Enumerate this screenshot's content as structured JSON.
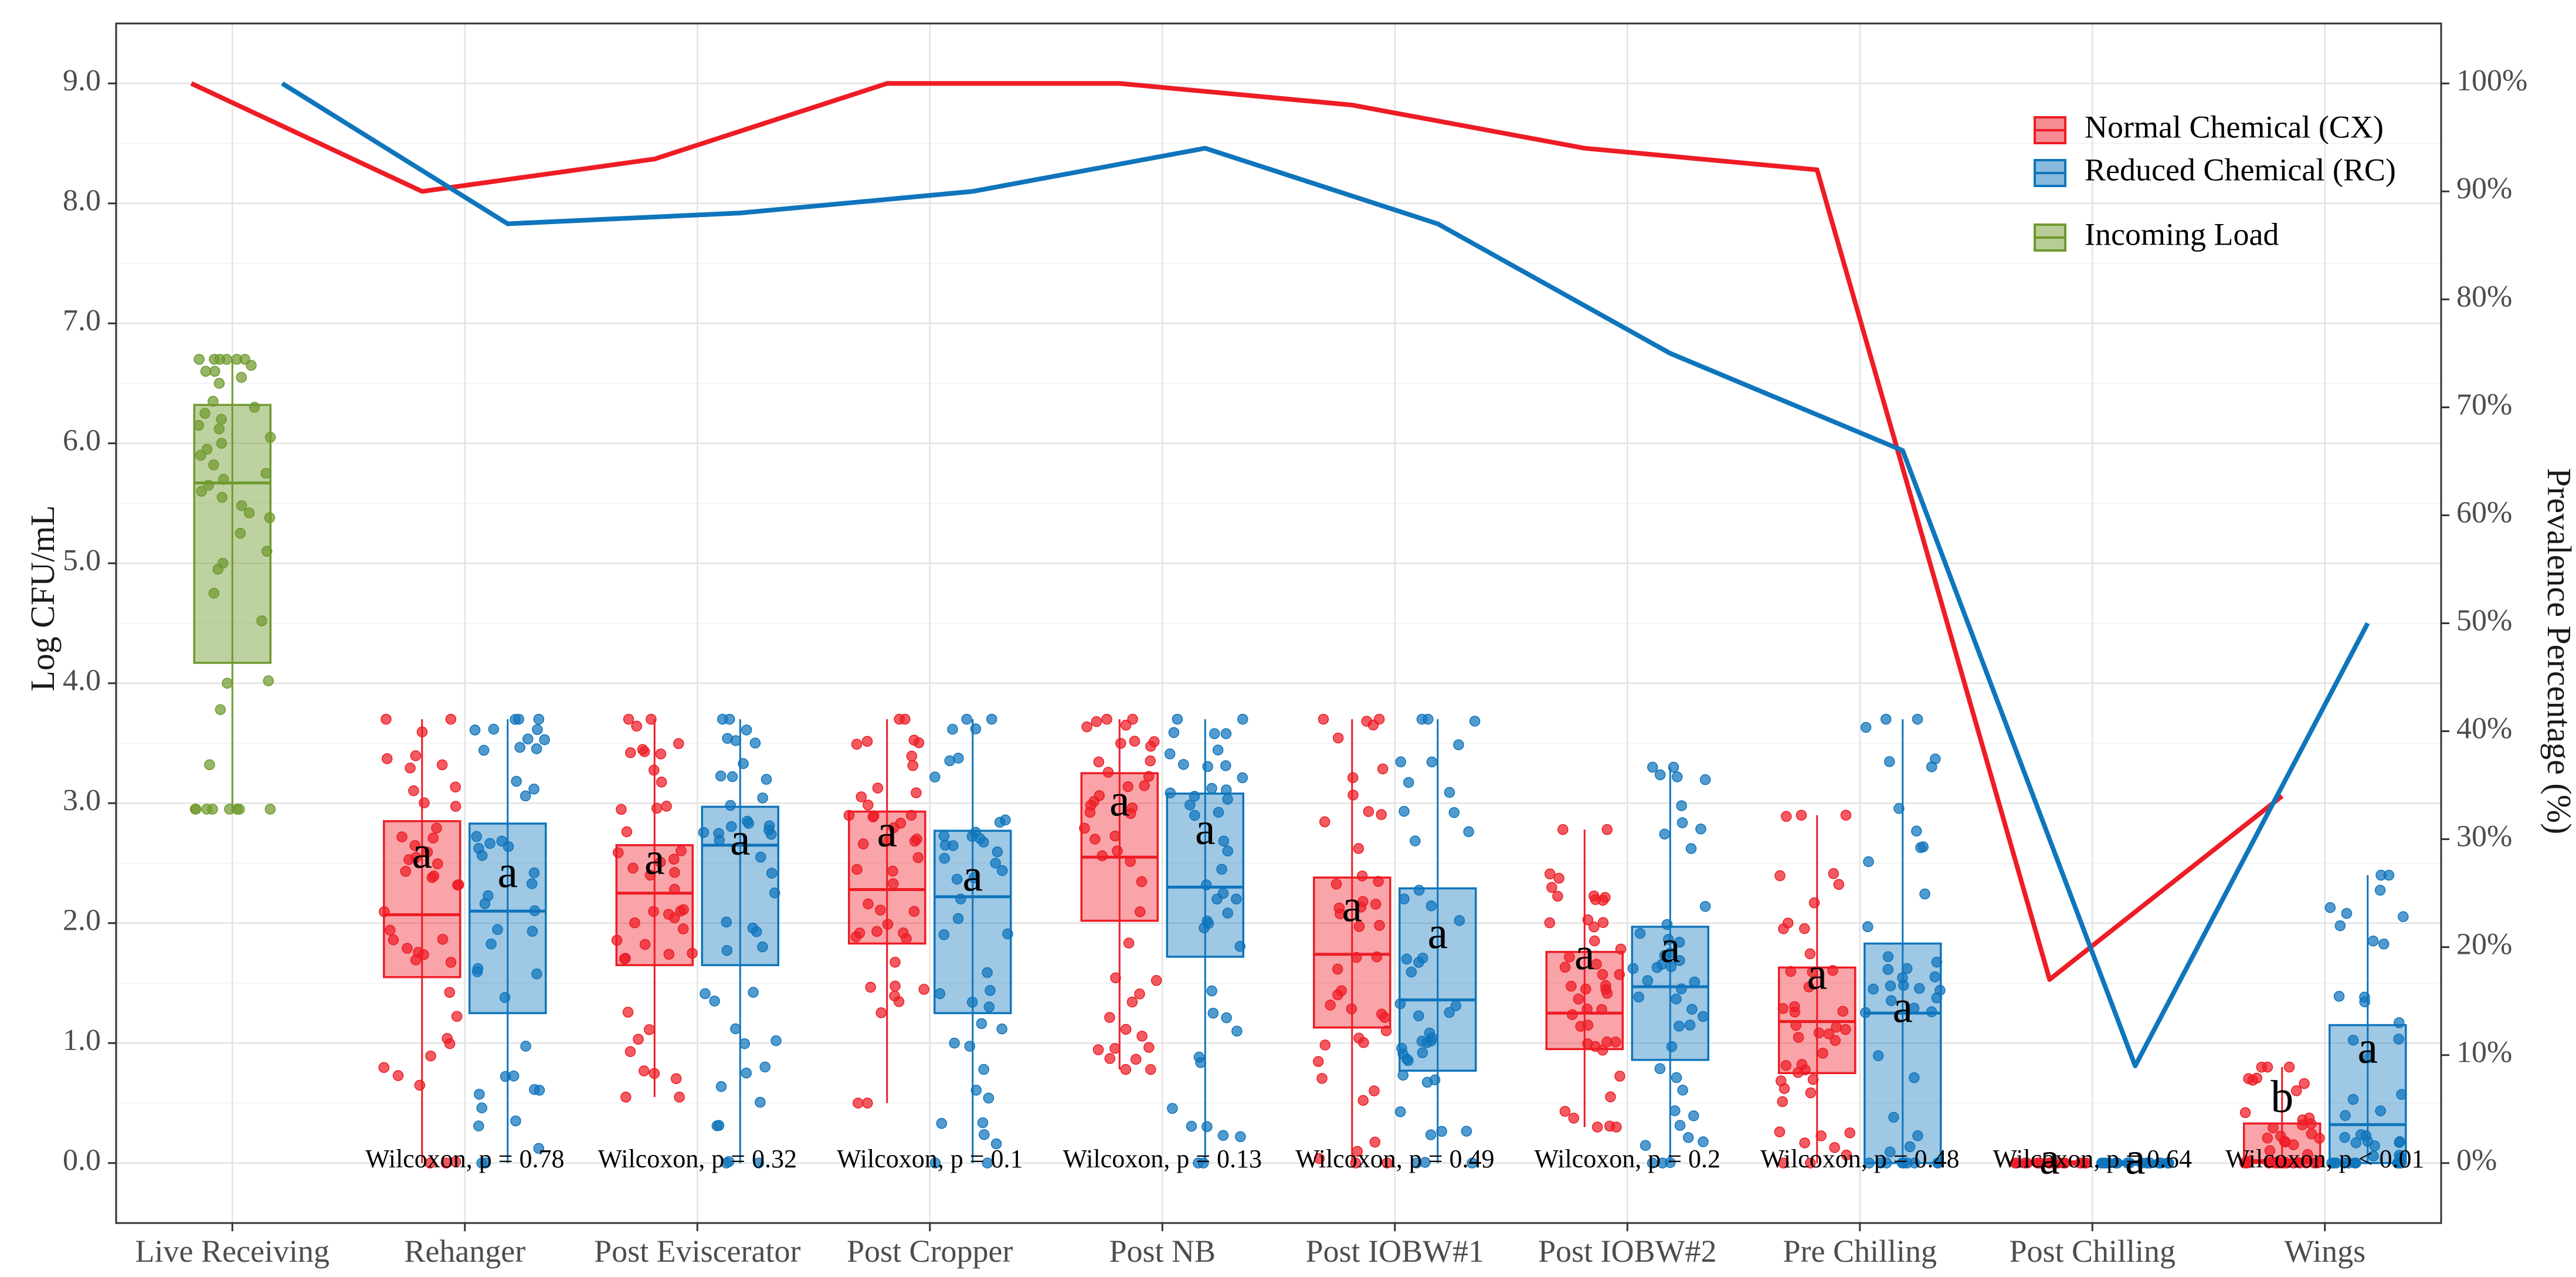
{
  "chart_data": {
    "type": "boxplot",
    "ylabel_left": "Log CFU/mL",
    "ylabel_right": "Prevalence Percentage (%)",
    "ylim_left": [
      -0.5,
      9.5
    ],
    "y_ticks_left": [
      0,
      1,
      2,
      3,
      4,
      5,
      6,
      7,
      8,
      9
    ],
    "y_tick_labels_left": [
      "0.0",
      "1.0",
      "2.0",
      "3.0",
      "4.0",
      "5.0",
      "6.0",
      "7.0",
      "8.0",
      "9.0"
    ],
    "y_ticks_right": [
      0,
      10,
      20,
      30,
      40,
      50,
      60,
      70,
      80,
      90,
      100
    ],
    "y_tick_labels_right": [
      "0%",
      "10%",
      "20%",
      "30%",
      "40%",
      "50%",
      "60%",
      "70%",
      "80%",
      "90%",
      "100%"
    ],
    "grid": true,
    "legend_position": "top-right",
    "categories": [
      "Live Receiving",
      "Rehanger",
      "Post Eviscerator",
      "Post Cropper",
      "Post NB",
      "Post IOBW#1",
      "Post IOBW#2",
      "Pre Chilling",
      "Post Chilling",
      "Wings"
    ],
    "legend": [
      {
        "label": "Normal Chemical (CX)",
        "color": "#ee1c25"
      },
      {
        "label": "Reduced Chemical (RC)",
        "color": "#0f75bc"
      },
      {
        "label": "Incoming Load",
        "color": "#6f9a2e"
      }
    ],
    "incoming_load": {
      "category": "Live Receiving",
      "box": {
        "min": 2.95,
        "q1": 4.17,
        "median": 5.67,
        "q3": 6.32,
        "max": 6.7
      },
      "points": [
        2.95,
        2.95,
        2.95,
        2.95,
        3.32,
        2.95,
        2.95,
        2.95,
        2.95,
        3.78,
        4.0,
        4.02,
        4.52,
        4.75,
        4.95,
        5.0,
        5.1,
        5.25,
        5.38,
        5.42,
        5.48,
        5.55,
        5.6,
        5.65,
        5.7,
        5.75,
        5.82,
        5.9,
        5.95,
        6.0,
        6.05,
        6.12,
        6.15,
        6.2,
        6.25,
        6.3,
        6.35,
        6.5,
        6.6,
        6.7,
        6.7,
        6.7,
        6.7,
        6.7,
        6.7,
        6.65,
        6.6,
        6.55
      ]
    },
    "series": [
      {
        "name": "Normal Chemical (CX)",
        "color": "#ee1c25",
        "categories": [
          "Rehanger",
          "Post Eviscerator",
          "Post Cropper",
          "Post NB",
          "Post IOBW#1",
          "Post IOBW#2",
          "Pre Chilling",
          "Post Chilling",
          "Wings"
        ],
        "boxes": [
          {
            "min": 0.0,
            "q1": 1.55,
            "median": 2.07,
            "q3": 2.85,
            "max": 3.7
          },
          {
            "min": 0.55,
            "q1": 1.65,
            "median": 2.25,
            "q3": 2.65,
            "max": 3.7
          },
          {
            "min": 0.5,
            "q1": 1.83,
            "median": 2.28,
            "q3": 2.93,
            "max": 3.7
          },
          {
            "min": 0.78,
            "q1": 2.02,
            "median": 2.55,
            "q3": 3.25,
            "max": 3.7
          },
          {
            "min": 0.0,
            "q1": 1.13,
            "median": 1.74,
            "q3": 2.38,
            "max": 3.7
          },
          {
            "min": 0.3,
            "q1": 0.95,
            "median": 1.25,
            "q3": 1.76,
            "max": 2.78
          },
          {
            "min": 0.0,
            "q1": 0.75,
            "median": 1.18,
            "q3": 1.63,
            "max": 2.9
          },
          {
            "min": 0.0,
            "q1": 0.0,
            "median": 0.0,
            "q3": 0.0,
            "max": 0.0
          },
          {
            "min": 0.0,
            "q1": 0.0,
            "median": 0.02,
            "q3": 0.33,
            "max": 0.8
          }
        ],
        "letters": [
          "a",
          "a",
          "a",
          "a",
          "a",
          "a",
          "a",
          "a",
          "b"
        ],
        "prevalence_x": [
          "Live Receiving",
          "Rehanger",
          "Post Eviscerator",
          "Post Cropper",
          "Post NB",
          "Post IOBW#1",
          "Post IOBW#2",
          "Pre Chilling",
          "Post Chilling",
          "Wings"
        ],
        "prevalence": [
          100,
          90,
          93,
          100,
          100,
          98,
          94,
          92,
          17,
          34
        ]
      },
      {
        "name": "Reduced Chemical (RC)",
        "color": "#0f75bc",
        "categories": [
          "Rehanger",
          "Post Eviscerator",
          "Post Cropper",
          "Post NB",
          "Post IOBW#1",
          "Post IOBW#2",
          "Pre Chilling",
          "Post Chilling",
          "Wings"
        ],
        "boxes": [
          {
            "min": 0.0,
            "q1": 1.25,
            "median": 2.1,
            "q3": 2.83,
            "max": 3.7
          },
          {
            "min": 0.0,
            "q1": 1.65,
            "median": 2.65,
            "q3": 2.97,
            "max": 3.7
          },
          {
            "min": 0.0,
            "q1": 1.25,
            "median": 2.22,
            "q3": 2.77,
            "max": 3.7
          },
          {
            "min": 0.0,
            "q1": 1.72,
            "median": 2.3,
            "q3": 3.08,
            "max": 3.7
          },
          {
            "min": 0.0,
            "q1": 0.77,
            "median": 1.36,
            "q3": 2.29,
            "max": 3.7
          },
          {
            "min": 0.0,
            "q1": 0.86,
            "median": 1.47,
            "q3": 1.97,
            "max": 3.3
          },
          {
            "min": 0.0,
            "q1": 0.0,
            "median": 1.25,
            "q3": 1.83,
            "max": 3.7
          },
          {
            "min": 0.0,
            "q1": 0.0,
            "median": 0.0,
            "q3": 0.0,
            "max": 0.0
          },
          {
            "min": 0.0,
            "q1": 0.0,
            "median": 0.32,
            "q3": 1.15,
            "max": 2.4
          }
        ],
        "letters": [
          "a",
          "a",
          "a",
          "a",
          "a",
          "a",
          "a",
          "a",
          "a"
        ],
        "prevalence_x": [
          "Live Receiving",
          "Rehanger",
          "Post Eviscerator",
          "Post Cropper",
          "Post NB",
          "Post IOBW#1",
          "Post IOBW#2",
          "Pre Chilling",
          "Post Chilling",
          "Wings"
        ],
        "prevalence": [
          100,
          87,
          88,
          90,
          94,
          87,
          75,
          66,
          9,
          50
        ]
      }
    ],
    "wilcoxon": [
      "Wilcoxon, p = 0.78",
      "Wilcoxon, p = 0.32",
      "Wilcoxon, p = 0.1",
      "Wilcoxon, p = 0.13",
      "Wilcoxon, p = 0.49",
      "Wilcoxon, p = 0.2",
      "Wilcoxon, p = 0.48",
      "Wilcoxon, p = 0.64",
      "Wilcoxon, p < 0.01"
    ]
  }
}
